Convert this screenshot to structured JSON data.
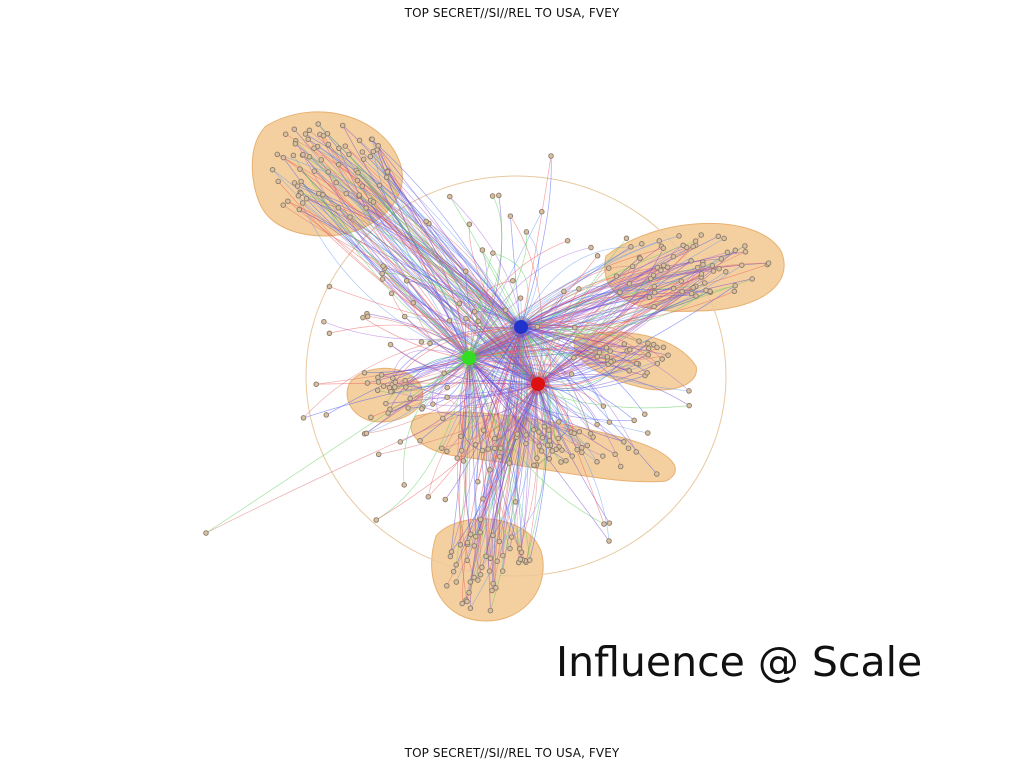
{
  "classification_top": "TOP SECRET//SI//REL TO USA, FVEY",
  "classification_bottom": "TOP SECRET//SI//REL TO USA, FVEY",
  "title": "Influence @ Scale",
  "graph": {
    "hub_colors": {
      "green": "#33dd22",
      "blue": "#2233cc",
      "red": "#dd1111"
    },
    "cluster_fill": "#f0c080",
    "node_color": "#8a7a6a",
    "edge_palette": [
      "#4455ee",
      "#7744cc",
      "#ee5555",
      "#55cc55",
      "#aa66dd",
      "#6699ee",
      "#e07070"
    ]
  }
}
